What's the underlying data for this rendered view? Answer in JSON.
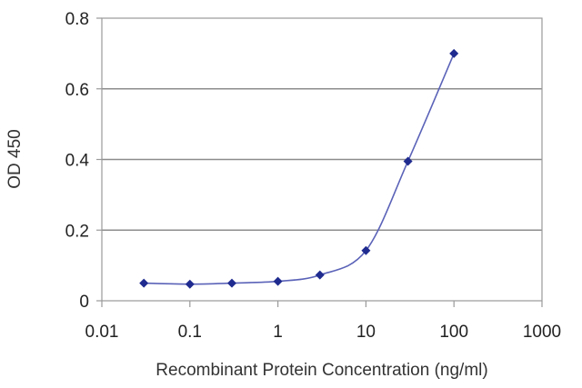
{
  "chart_data": {
    "type": "line",
    "title": "",
    "xlabel": "Recombinant Protein Concentration (ng/ml)",
    "ylabel": "OD 450",
    "x_scale": "log",
    "xlim": [
      0.01,
      1000
    ],
    "ylim": [
      0,
      0.8
    ],
    "x_ticks": [
      0.01,
      0.1,
      1,
      10,
      100,
      1000
    ],
    "x_tick_labels": [
      "0.01",
      "0.1",
      "1",
      "10",
      "100",
      "1000"
    ],
    "y_ticks": [
      0,
      0.2,
      0.4,
      0.6,
      0.8
    ],
    "y_tick_labels": [
      "0",
      "0.2",
      "0.4",
      "0.6",
      "0.8"
    ],
    "grid": "horizontal",
    "legend": "none",
    "series": [
      {
        "color": "#1f2b8f",
        "x": [
          0.03,
          0.1,
          0.3,
          1,
          3,
          10,
          30,
          100
        ],
        "y": [
          0.05,
          0.047,
          0.05,
          0.055,
          0.073,
          0.142,
          0.395,
          0.7
        ]
      }
    ]
  }
}
